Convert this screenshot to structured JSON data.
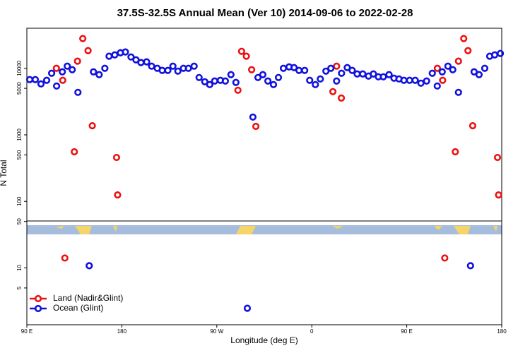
{
  "chart_data": {
    "type": "scatter",
    "title": "37.5S-32.5S Annual Mean (Ver 10)   2014-09-06 to 2022-02-28",
    "xlabel": "Longitude (deg E)",
    "ylabel": "N Total",
    "xlim": [
      90,
      540
    ],
    "xticks": [
      {
        "value": 90,
        "label": "90 E"
      },
      180,
      {
        "value": 270,
        "label": "90 W"
      },
      {
        "value": 360,
        "label": "0"
      },
      {
        "value": 450,
        "label": "90 E"
      },
      {
        "value": 540,
        "label": "180"
      }
    ],
    "ylim": [
      1.4,
      40000
    ],
    "log_y": true,
    "yticks": [
      5,
      10,
      50,
      100,
      500,
      1000,
      5000,
      10000
    ],
    "legend": "lower left",
    "series": [
      {
        "name": "Land (Nadir&Glint)",
        "color": "#ee1111",
        "x": [
          118,
          124,
          126,
          135,
          138,
          143,
          148,
          152,
          175,
          176,
          290,
          293.5,
          298,
          303,
          307,
          380,
          383.5,
          388,
          479,
          484,
          486,
          496,
          499,
          504,
          508,
          512.5,
          536,
          537
        ],
        "values": [
          10000,
          6600,
          14.1,
          556,
          12800,
          28000,
          18400,
          1370,
          457,
          125,
          4680,
          18000,
          15200,
          9520,
          1340,
          4460,
          10770,
          3570,
          10000,
          6600,
          14.1,
          556,
          12800,
          28000,
          18400,
          1370,
          457,
          125
        ]
      },
      {
        "name": "Ocean (Glint)",
        "color": "#1111dd",
        "x": [
          92.7,
          98,
          103.4,
          108.8,
          113.5,
          118.2,
          123.6,
          128.3,
          133,
          138.4,
          149.1,
          153.1,
          158.5,
          163.9,
          167.9,
          173.3,
          178.7,
          183.4,
          188.7,
          193.4,
          198.1,
          203.5,
          208.2,
          213.6,
          218.3,
          223.6,
          228.4,
          233.1,
          238.4,
          243.1,
          248.5,
          253.2,
          258.6,
          263.3,
          268,
          273.4,
          278.1,
          283.4,
          288.1,
          298.9,
          304.2,
          309,
          313.6,
          318.4,
          323.7,
          328.4,
          333.1,
          338.5,
          343.2,
          347.9,
          353.3,
          358,
          363.4,
          368.1,
          373.4,
          378.1,
          383.5,
          388.2,
          393.6,
          398.3,
          403,
          408.3,
          413.7,
          418.4,
          423.1,
          427.8,
          433.2,
          437.9,
          442.6,
          447.3,
          452.7,
          458,
          463.4,
          468.8,
          474.2,
          478.9,
          483.6,
          489,
          493.6,
          499,
          510.4,
          513.8,
          518.5,
          523.9,
          528.6,
          533.3,
          538.7
        ],
        "values": [
          6760,
          6760,
          5830,
          6600,
          8430,
          5420,
          8850,
          10770,
          9520,
          4350,
          10.8,
          8850,
          8020,
          10000,
          15200,
          15900,
          17100,
          17600,
          14800,
          13400,
          12200,
          12500,
          10770,
          10000,
          9290,
          9290,
          10770,
          9060,
          10000,
          10000,
          10770,
          7270,
          6280,
          5690,
          6440,
          6600,
          6440,
          8020,
          6130,
          2.48,
          1850,
          7270,
          8020,
          6440,
          5690,
          7270,
          10000,
          10500,
          10250,
          9290,
          9290,
          6600,
          5690,
          6920,
          9060,
          10000,
          6440,
          8430,
          10250,
          9290,
          8220,
          8220,
          7640,
          8220,
          7450,
          7450,
          8020,
          7100,
          6920,
          6600,
          6600,
          6600,
          5980,
          6440,
          8430,
          5420,
          8850,
          10770,
          9520,
          4350,
          10.8,
          8850,
          8020,
          10000,
          15200,
          15900,
          16700
        ]
      }
    ]
  }
}
